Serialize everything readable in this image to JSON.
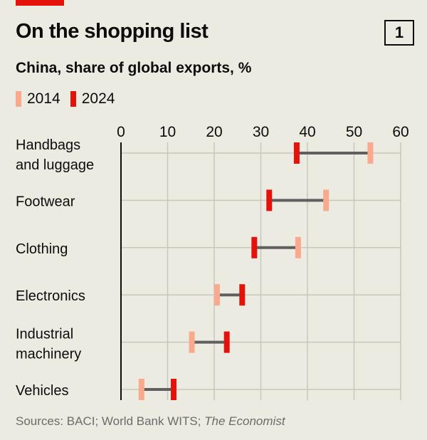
{
  "header": {
    "title": "On the shopping list",
    "badge": "1",
    "subtitle": "China, share of global exports, %"
  },
  "chart_data": {
    "type": "dumbbell",
    "title": "On the shopping list",
    "subtitle": "China, share of global exports, %",
    "xlim": [
      0,
      60
    ],
    "xticks": [
      "0",
      "10",
      "20",
      "30",
      "40",
      "50",
      "60"
    ],
    "grid": true,
    "legend_placement": "top-left",
    "series": [
      {
        "name": "2014",
        "color": "#f9a98e"
      },
      {
        "name": "2024",
        "color": "#e3120b"
      }
    ],
    "categories": [
      {
        "label": [
          "Handbags",
          "and luggage"
        ],
        "v2014": 53.5,
        "v2024": 37.7
      },
      {
        "label": [
          "Footwear"
        ],
        "v2014": 44.0,
        "v2024": 31.8
      },
      {
        "label": [
          "Clothing"
        ],
        "v2014": 38.0,
        "v2024": 28.6
      },
      {
        "label": [
          "Electronics"
        ],
        "v2014": 20.6,
        "v2024": 26.0
      },
      {
        "label": [
          "Industrial",
          "machinery"
        ],
        "v2014": 15.2,
        "v2024": 22.7
      },
      {
        "label": [
          "Vehicles"
        ],
        "v2014": 4.4,
        "v2024": 11.3
      }
    ]
  },
  "footer": {
    "source_prefix": "Sources: BACI; World Bank WITS; ",
    "source_italic": "The Economist"
  }
}
